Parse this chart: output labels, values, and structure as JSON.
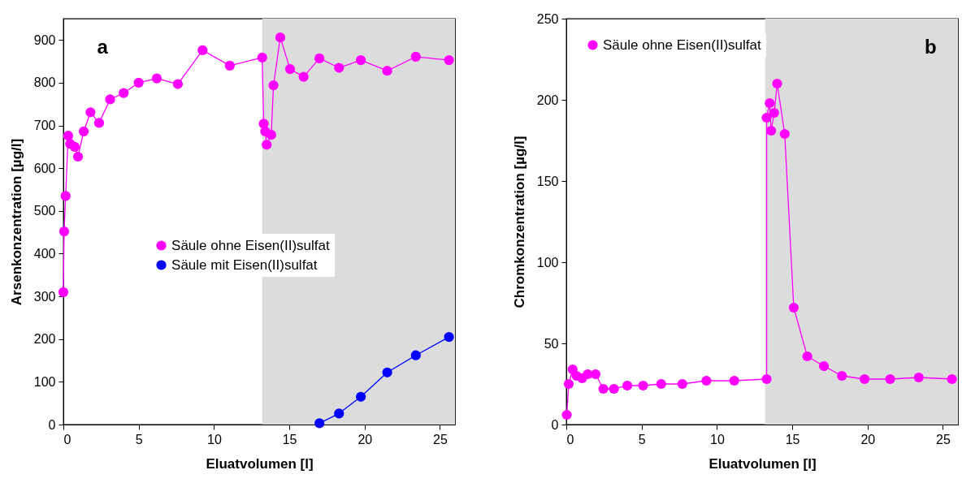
{
  "chart_data": [
    {
      "type": "line",
      "xlabel": "Eluatvolumen [l]",
      "ylabel": "Arsenkonzentration [µg/l]",
      "annotations": [
        "a"
      ],
      "xlim": [
        0,
        26
      ],
      "ylim": [
        0,
        950
      ],
      "xticks": [
        0,
        5,
        10,
        15,
        20,
        25
      ],
      "yticks": [
        0,
        100,
        200,
        300,
        400,
        500,
        600,
        700,
        800,
        900
      ],
      "grid": false,
      "legend": "center",
      "marker": "circle",
      "line_style": "solid",
      "bands": [
        {
          "axis": "x",
          "from": 13.2,
          "to": 26,
          "label": null,
          "color": "#dcdcdc"
        }
      ],
      "series": [
        {
          "name": "Säule ohne Eisen(II)sulfat",
          "color": "#ff00ff",
          "x": [
            0,
            0.05,
            0.15,
            0.32,
            0.45,
            0.75,
            0.97,
            1.35,
            1.8,
            2.37,
            3.1,
            4.0,
            5.0,
            6.2,
            7.6,
            9.24,
            11.05,
            13.2,
            13.3,
            13.4,
            13.5,
            13.8,
            13.95,
            14.4,
            15.05,
            15.95,
            17.0,
            18.3,
            19.75,
            21.5,
            23.4,
            25.6
          ],
          "values": [
            310,
            452,
            535,
            676,
            657,
            650,
            627,
            686,
            731,
            706,
            761,
            776,
            800,
            810,
            797,
            876,
            840,
            859,
            704,
            686,
            655,
            678,
            794,
            906,
            832,
            814,
            857,
            835,
            853,
            828,
            861,
            853
          ]
        },
        {
          "name": "Säule mit Eisen(II)sulfat",
          "color": "#0000ff",
          "x": [
            17.0,
            18.3,
            19.75,
            21.5,
            23.4,
            25.6
          ],
          "values": [
            3,
            26,
            65,
            122,
            162,
            205
          ]
        }
      ]
    },
    {
      "type": "line",
      "xlabel": "Eluatvolumen [l]",
      "ylabel": "Chromkonzentration [µg/l]",
      "annotations": [
        "b"
      ],
      "xlim": [
        0,
        26
      ],
      "ylim": [
        0,
        250
      ],
      "xticks": [
        0,
        5,
        10,
        15,
        20,
        25
      ],
      "yticks": [
        0,
        50,
        100,
        150,
        200,
        250
      ],
      "grid": false,
      "legend": "top left",
      "marker": "circle",
      "line_style": "solid",
      "bands": [
        {
          "axis": "x",
          "from": 13.2,
          "to": 26,
          "label": null,
          "color": "#dcdcdc"
        }
      ],
      "series": [
        {
          "name": "Säule ohne Eisen(II)sulfat",
          "color": "#ff00ff",
          "x": [
            0.03,
            0.16,
            0.42,
            0.68,
            1.05,
            1.42,
            1.94,
            2.46,
            3.16,
            4.05,
            5.1,
            6.3,
            7.7,
            9.3,
            11.15,
            13.3,
            13.3,
            13.5,
            13.6,
            13.8,
            14.0,
            14.5,
            15.1,
            16.0,
            17.1,
            18.3,
            19.8,
            21.5,
            23.4,
            25.6
          ],
          "values": [
            6,
            25,
            34,
            30,
            28.6,
            31,
            31,
            22,
            22,
            24,
            24,
            25,
            25,
            27,
            27,
            28,
            189,
            198,
            181,
            192,
            210,
            179,
            72,
            42,
            36,
            30,
            28,
            28,
            29,
            28
          ]
        }
      ]
    }
  ]
}
